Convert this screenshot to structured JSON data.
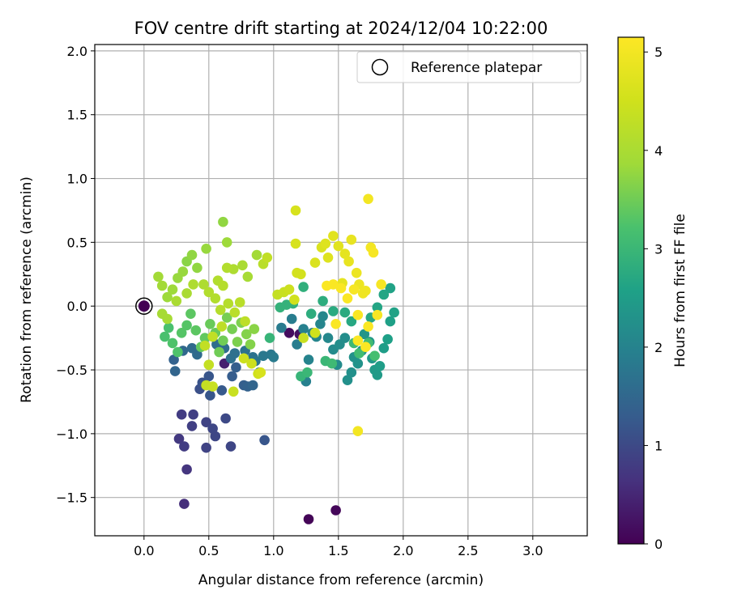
{
  "chart_data": {
    "type": "scatter",
    "title": "FOV centre drift starting at 2024/12/04 10:22:00",
    "xlabel": "Angular distance from reference (arcmin)",
    "ylabel": "Rotation from reference (arcmin)",
    "xlim": [
      -0.38,
      3.42
    ],
    "ylim": [
      -1.8,
      2.05
    ],
    "xticks": [
      0.0,
      0.5,
      1.0,
      1.5,
      2.0,
      2.5,
      3.0
    ],
    "yticks": [
      -1.5,
      -1.0,
      -0.5,
      0.0,
      0.5,
      1.0,
      1.5,
      2.0
    ],
    "xtick_labels": [
      "0.0",
      "0.5",
      "1.0",
      "1.5",
      "2.0",
      "2.5",
      "3.0"
    ],
    "ytick_labels": [
      "−1.5",
      "−1.0",
      "−0.5",
      "0.0",
      "0.5",
      "1.0",
      "1.5",
      "2.0"
    ],
    "grid": true,
    "legend": {
      "placement": "top-right",
      "entries": [
        "Reference platepar"
      ]
    },
    "reference_point": {
      "x": 0.0,
      "y": 0.0,
      "label": "Reference platepar"
    },
    "colorbar": {
      "label": "Hours from first FF file",
      "colormap": "viridis",
      "range": [
        0,
        5.15
      ],
      "ticks": [
        0,
        1,
        2,
        3,
        4,
        5
      ],
      "tick_labels": [
        "0",
        "1",
        "2",
        "3",
        "4",
        "5"
      ]
    },
    "points": [
      [
        0.0,
        0.0,
        0.0
      ],
      [
        1.27,
        -1.67,
        0.05
      ],
      [
        1.48,
        -1.6,
        0.08
      ],
      [
        1.12,
        -0.21,
        0.15
      ],
      [
        1.2,
        -0.22,
        0.2
      ],
      [
        0.62,
        -0.45,
        0.4
      ],
      [
        0.31,
        -1.55,
        0.6
      ],
      [
        0.33,
        -1.28,
        0.7
      ],
      [
        0.27,
        -1.04,
        0.75
      ],
      [
        0.31,
        -1.1,
        0.8
      ],
      [
        0.29,
        -0.85,
        0.8
      ],
      [
        0.38,
        -0.85,
        0.85
      ],
      [
        0.37,
        -0.94,
        0.85
      ],
      [
        0.48,
        -0.91,
        0.9
      ],
      [
        0.48,
        -1.11,
        0.9
      ],
      [
        0.53,
        -0.96,
        0.95
      ],
      [
        0.55,
        -1.02,
        0.95
      ],
      [
        0.67,
        -1.1,
        0.95
      ],
      [
        0.63,
        -0.88,
        1.0
      ],
      [
        0.93,
        -1.05,
        1.2
      ],
      [
        0.43,
        -0.65,
        1.1
      ],
      [
        0.45,
        -0.6,
        1.15
      ],
      [
        0.5,
        -0.55,
        1.2
      ],
      [
        0.51,
        -0.7,
        1.2
      ],
      [
        0.6,
        -0.66,
        1.25
      ],
      [
        0.68,
        -0.55,
        1.3
      ],
      [
        0.71,
        -0.48,
        1.35
      ],
      [
        0.77,
        -0.62,
        1.35
      ],
      [
        0.8,
        -0.63,
        1.4
      ],
      [
        0.84,
        -0.62,
        1.45
      ],
      [
        0.23,
        -0.42,
        1.4
      ],
      [
        0.24,
        -0.51,
        1.45
      ],
      [
        0.3,
        -0.35,
        1.5
      ],
      [
        0.37,
        -0.33,
        1.55
      ],
      [
        0.41,
        -0.38,
        1.55
      ],
      [
        0.56,
        -0.3,
        1.6
      ],
      [
        0.62,
        -0.33,
        1.6
      ],
      [
        0.67,
        -0.41,
        1.65
      ],
      [
        0.7,
        -0.37,
        1.65
      ],
      [
        0.78,
        -0.35,
        1.7
      ],
      [
        0.84,
        -0.4,
        1.7
      ],
      [
        0.86,
        -0.43,
        1.75
      ],
      [
        0.89,
        -0.52,
        1.75
      ],
      [
        0.92,
        -0.39,
        1.8
      ],
      [
        0.98,
        -0.38,
        1.8
      ],
      [
        1.0,
        -0.4,
        1.85
      ],
      [
        1.06,
        -0.17,
        1.85
      ],
      [
        1.14,
        -0.1,
        1.9
      ],
      [
        1.18,
        -0.3,
        1.9
      ],
      [
        1.23,
        -0.18,
        1.95
      ],
      [
        1.25,
        -0.59,
        1.95
      ],
      [
        1.27,
        -0.42,
        2.0
      ],
      [
        1.3,
        -0.21,
        2.0
      ],
      [
        1.33,
        -0.24,
        2.05
      ],
      [
        1.36,
        -0.14,
        2.05
      ],
      [
        1.38,
        -0.08,
        2.1
      ],
      [
        1.42,
        -0.25,
        2.1
      ],
      [
        1.46,
        -0.34,
        2.15
      ],
      [
        1.49,
        -0.46,
        2.15
      ],
      [
        1.51,
        -0.3,
        2.2
      ],
      [
        1.55,
        -0.25,
        2.2
      ],
      [
        1.57,
        -0.58,
        2.25
      ],
      [
        1.6,
        -0.52,
        2.25
      ],
      [
        1.62,
        -0.4,
        2.3
      ],
      [
        1.65,
        -0.45,
        2.3
      ],
      [
        1.68,
        -0.35,
        2.35
      ],
      [
        1.7,
        -0.22,
        2.35
      ],
      [
        1.74,
        -0.28,
        2.4
      ],
      [
        1.76,
        -0.41,
        2.4
      ],
      [
        1.78,
        -0.5,
        2.45
      ],
      [
        1.8,
        -0.54,
        2.45
      ],
      [
        1.82,
        -0.47,
        2.5
      ],
      [
        1.85,
        -0.33,
        2.5
      ],
      [
        1.88,
        -0.26,
        2.55
      ],
      [
        1.9,
        -0.12,
        2.55
      ],
      [
        1.93,
        -0.05,
        2.6
      ],
      [
        1.9,
        0.14,
        2.6
      ],
      [
        1.85,
        0.09,
        2.65
      ],
      [
        1.8,
        -0.01,
        2.65
      ],
      [
        1.75,
        -0.09,
        2.7
      ],
      [
        1.6,
        -0.12,
        2.7
      ],
      [
        1.55,
        -0.05,
        2.75
      ],
      [
        1.46,
        -0.04,
        2.75
      ],
      [
        1.38,
        0.04,
        2.8
      ],
      [
        1.29,
        -0.06,
        2.8
      ],
      [
        1.23,
        0.15,
        2.85
      ],
      [
        1.15,
        0.02,
        2.85
      ],
      [
        1.1,
        0.01,
        2.9
      ],
      [
        1.05,
        -0.01,
        2.9
      ],
      [
        0.97,
        -0.25,
        2.95
      ],
      [
        1.21,
        -0.55,
        2.95
      ],
      [
        1.26,
        -0.52,
        3.0
      ],
      [
        1.4,
        -0.43,
        3.0
      ],
      [
        1.45,
        -0.45,
        3.05
      ],
      [
        1.62,
        -0.29,
        3.05
      ],
      [
        1.66,
        -0.37,
        3.1
      ],
      [
        1.73,
        -0.29,
        3.1
      ],
      [
        1.78,
        -0.39,
        3.15
      ],
      [
        0.16,
        -0.24,
        3.2
      ],
      [
        0.19,
        -0.17,
        3.2
      ],
      [
        0.22,
        -0.29,
        3.25
      ],
      [
        0.26,
        -0.36,
        3.25
      ],
      [
        0.29,
        -0.21,
        3.3
      ],
      [
        0.33,
        -0.15,
        3.3
      ],
      [
        0.36,
        -0.06,
        3.35
      ],
      [
        0.4,
        -0.19,
        3.35
      ],
      [
        0.44,
        -0.32,
        3.4
      ],
      [
        0.47,
        -0.25,
        3.4
      ],
      [
        0.51,
        -0.14,
        3.45
      ],
      [
        0.55,
        -0.21,
        3.45
      ],
      [
        0.58,
        -0.36,
        3.5
      ],
      [
        0.61,
        -0.27,
        3.5
      ],
      [
        0.64,
        -0.09,
        3.55
      ],
      [
        0.68,
        -0.18,
        3.55
      ],
      [
        0.72,
        -0.28,
        3.6
      ],
      [
        0.75,
        -0.13,
        3.6
      ],
      [
        0.79,
        -0.22,
        3.65
      ],
      [
        0.82,
        -0.3,
        3.65
      ],
      [
        0.85,
        -0.18,
        3.7
      ],
      [
        0.33,
        0.35,
        3.7
      ],
      [
        0.37,
        0.4,
        3.75
      ],
      [
        0.41,
        0.3,
        3.75
      ],
      [
        0.3,
        0.27,
        3.8
      ],
      [
        0.26,
        0.22,
        3.8
      ],
      [
        0.22,
        0.13,
        3.85
      ],
      [
        0.18,
        0.07,
        3.85
      ],
      [
        0.14,
        0.16,
        3.9
      ],
      [
        0.11,
        0.23,
        3.9
      ],
      [
        0.14,
        -0.06,
        3.95
      ],
      [
        0.18,
        -0.1,
        3.95
      ],
      [
        0.25,
        0.04,
        4.0
      ],
      [
        0.33,
        0.1,
        4.0
      ],
      [
        0.38,
        0.17,
        4.05
      ],
      [
        0.46,
        0.17,
        4.05
      ],
      [
        0.5,
        0.11,
        4.1
      ],
      [
        0.55,
        0.06,
        4.1
      ],
      [
        0.59,
        -0.03,
        4.15
      ],
      [
        0.65,
        0.02,
        4.15
      ],
      [
        0.7,
        -0.05,
        4.2
      ],
      [
        0.74,
        0.03,
        4.2
      ],
      [
        0.78,
        -0.12,
        4.25
      ],
      [
        0.6,
        -0.16,
        4.25
      ],
      [
        0.53,
        -0.24,
        4.3
      ],
      [
        0.47,
        -0.31,
        4.3
      ],
      [
        0.5,
        -0.46,
        4.35
      ],
      [
        0.48,
        -0.62,
        4.35
      ],
      [
        0.53,
        -0.63,
        4.4
      ],
      [
        0.69,
        -0.67,
        4.4
      ],
      [
        0.77,
        -0.41,
        4.45
      ],
      [
        0.83,
        -0.45,
        4.45
      ],
      [
        0.88,
        -0.53,
        4.5
      ],
      [
        0.61,
        0.66,
        3.75
      ],
      [
        0.48,
        0.45,
        3.8
      ],
      [
        0.64,
        0.5,
        3.85
      ],
      [
        0.87,
        0.4,
        3.9
      ],
      [
        0.8,
        0.23,
        3.95
      ],
      [
        0.76,
        0.32,
        4.0
      ],
      [
        0.69,
        0.29,
        4.05
      ],
      [
        0.64,
        0.3,
        4.1
      ],
      [
        0.57,
        0.2,
        4.1
      ],
      [
        0.61,
        0.16,
        4.15
      ],
      [
        0.92,
        0.33,
        4.2
      ],
      [
        0.95,
        0.38,
        4.3
      ],
      [
        1.03,
        0.09,
        4.35
      ],
      [
        1.08,
        0.11,
        4.4
      ],
      [
        1.12,
        0.13,
        4.45
      ],
      [
        1.16,
        0.05,
        4.5
      ],
      [
        1.18,
        0.26,
        4.55
      ],
      [
        1.21,
        0.25,
        4.55
      ],
      [
        1.17,
        0.75,
        4.6
      ],
      [
        1.17,
        0.49,
        4.6
      ],
      [
        1.32,
        0.34,
        4.65
      ],
      [
        1.37,
        0.46,
        4.65
      ],
      [
        1.4,
        0.49,
        4.7
      ],
      [
        1.42,
        0.38,
        4.7
      ],
      [
        1.46,
        0.55,
        4.75
      ],
      [
        1.5,
        0.47,
        4.75
      ],
      [
        1.53,
        0.18,
        4.8
      ],
      [
        1.55,
        0.41,
        4.8
      ],
      [
        1.58,
        0.35,
        4.85
      ],
      [
        1.6,
        0.52,
        4.85
      ],
      [
        1.64,
        0.26,
        4.9
      ],
      [
        1.66,
        0.17,
        4.9
      ],
      [
        1.69,
        0.1,
        4.95
      ],
      [
        1.71,
        0.12,
        4.95
      ],
      [
        1.73,
        0.84,
        5.0
      ],
      [
        1.75,
        0.46,
        5.0
      ],
      [
        1.77,
        0.42,
        5.05
      ],
      [
        1.62,
        0.13,
        5.05
      ],
      [
        1.57,
        0.06,
        5.1
      ],
      [
        1.52,
        0.14,
        5.1
      ],
      [
        1.46,
        0.17,
        5.1
      ],
      [
        1.41,
        0.16,
        5.1
      ],
      [
        1.48,
        -0.14,
        5.1
      ],
      [
        1.65,
        -0.07,
        5.1
      ],
      [
        1.73,
        -0.16,
        5.1
      ],
      [
        1.71,
        -0.32,
        5.1
      ],
      [
        1.65,
        -0.27,
        5.1
      ],
      [
        1.8,
        -0.07,
        5.05
      ],
      [
        1.83,
        0.17,
        5.05
      ],
      [
        1.65,
        -0.98,
        5.0
      ],
      [
        0.9,
        -0.52,
        4.6
      ],
      [
        1.23,
        -0.25,
        4.4
      ],
      [
        1.32,
        -0.21,
        4.5
      ]
    ]
  }
}
